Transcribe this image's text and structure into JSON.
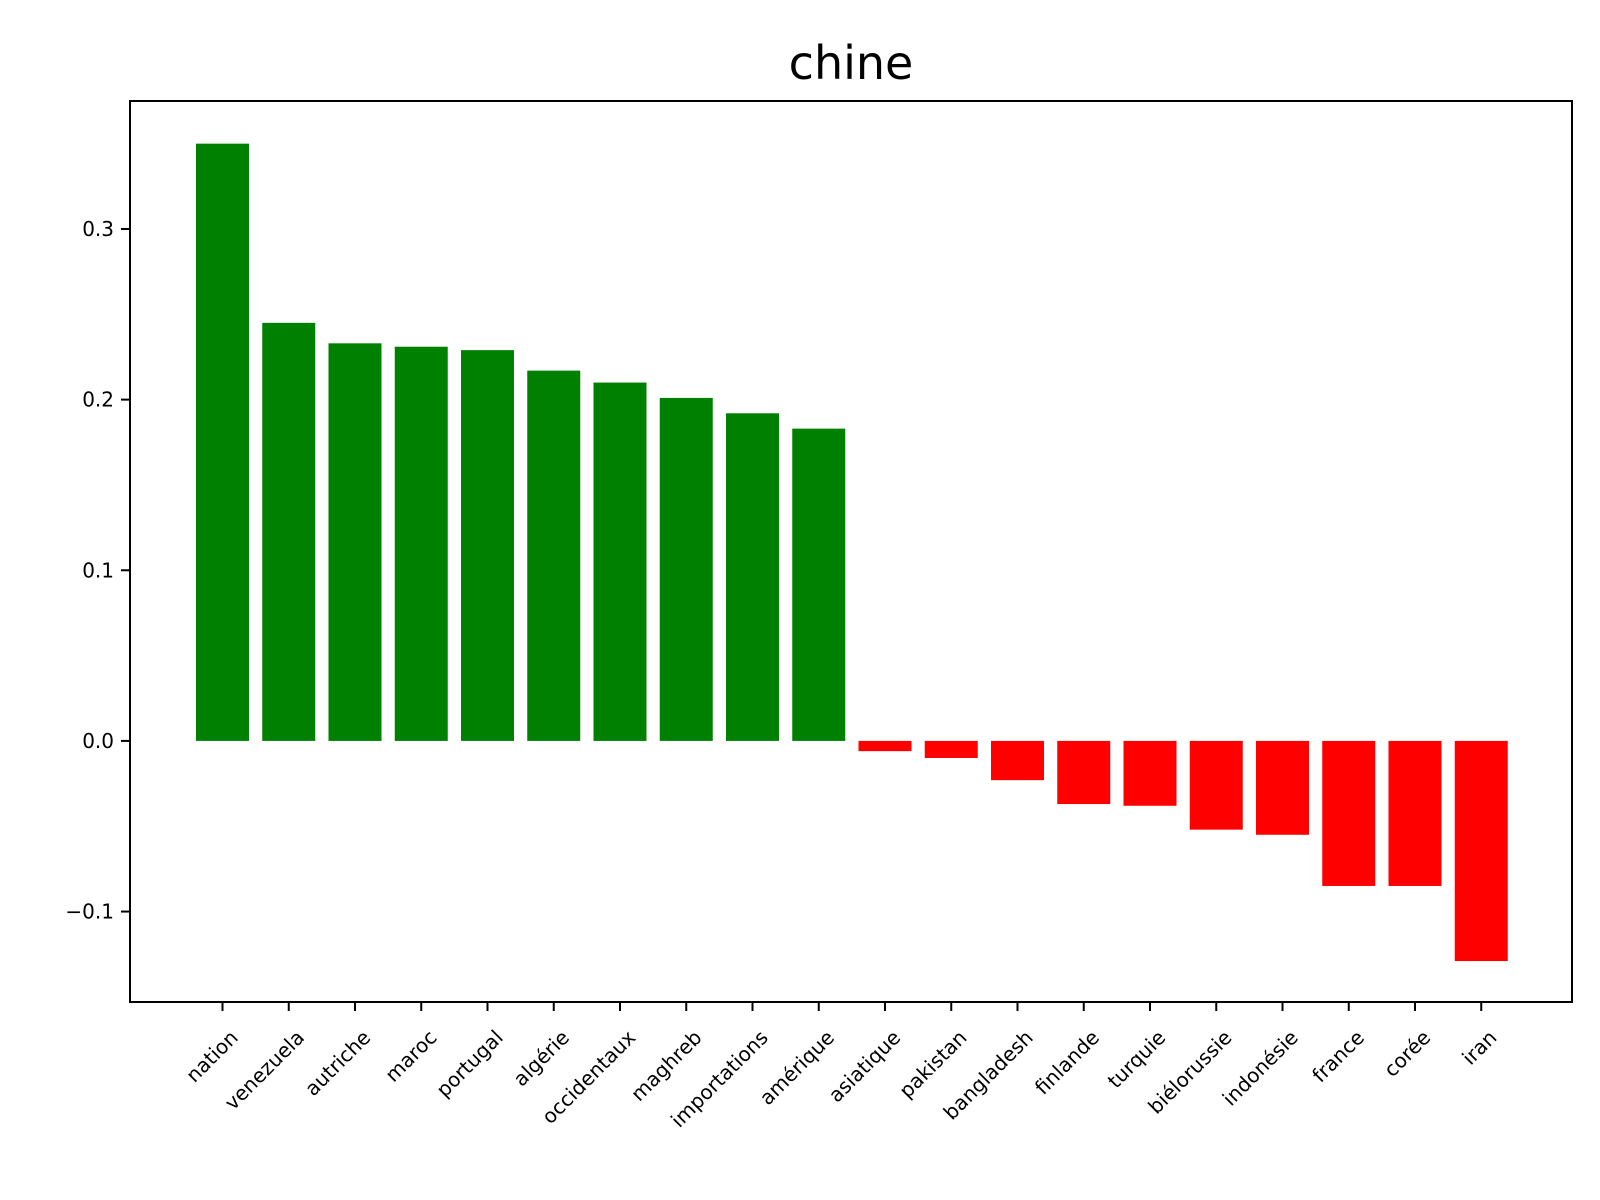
{
  "chart_data": {
    "type": "bar",
    "title": "chine",
    "xlabel": "",
    "ylabel": "",
    "categories": [
      "nation",
      "venezuela",
      "autriche",
      "maroc",
      "portugal",
      "algérie",
      "occidentaux",
      "maghreb",
      "importations",
      "amérique",
      "asiatique",
      "pakistan",
      "bangladesh",
      "finlande",
      "turquie",
      "biélorussie",
      "indonésie",
      "france",
      "corée",
      "iran"
    ],
    "values": [
      0.35,
      0.245,
      0.233,
      0.231,
      0.229,
      0.217,
      0.21,
      0.201,
      0.192,
      0.183,
      -0.006,
      -0.01,
      -0.023,
      -0.037,
      -0.038,
      -0.052,
      -0.055,
      -0.085,
      -0.085,
      -0.129
    ],
    "ylim": [
      -0.153,
      0.375
    ],
    "yticks": [
      -0.1,
      0.0,
      0.1,
      0.2,
      0.3
    ],
    "ytick_labels": [
      "−0.1",
      "0.0",
      "0.1",
      "0.2",
      "0.3"
    ],
    "grid": false,
    "colors": {
      "positive": "#008000",
      "negative": "#ff0000",
      "axes": "#000000"
    }
  }
}
